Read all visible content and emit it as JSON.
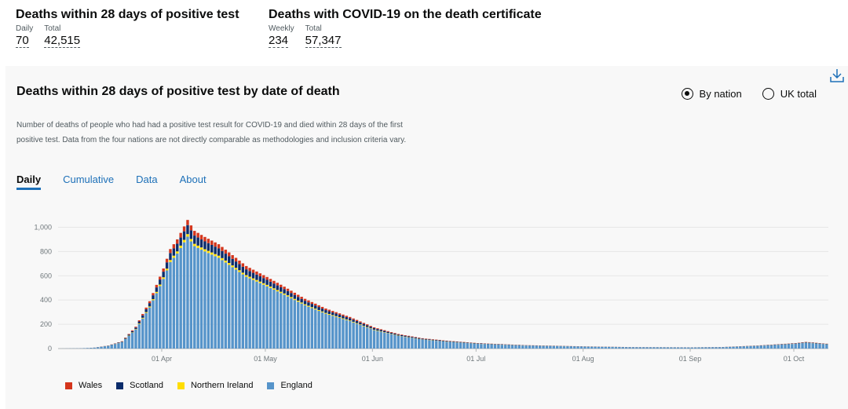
{
  "headline_1": {
    "title": "Deaths within 28 days of positive test",
    "daily_label": "Daily",
    "daily_value": "70",
    "total_label": "Total",
    "total_value": "42,515"
  },
  "headline_2": {
    "title": "Deaths with COVID-19 on the death certificate",
    "weekly_label": "Weekly",
    "weekly_value": "234",
    "total_label": "Total",
    "total_value": "57,347"
  },
  "card": {
    "title": "Deaths within 28 days of positive test by date of death",
    "description": "Number of deaths of people who had had a positive test result for COVID-19 and died within 28 days of the first positive test. Data from the four nations are not directly comparable as methodologies and inclusion criteria vary.",
    "radio_by_nation": "By nation",
    "radio_uk_total": "UK total",
    "tabs": [
      "Daily",
      "Cumulative",
      "Data",
      "About"
    ],
    "download_icon": "download-icon"
  },
  "colors": {
    "Wales": "#d4351c",
    "Scotland": "#0b2c6b",
    "Northern Ireland": "#ffdd00",
    "England": "#5694ca"
  },
  "chart_data": {
    "type": "bar",
    "stacked": true,
    "x_start": "2020-03-02",
    "x_end": "2020-10-10",
    "xticks": [
      {
        "date": "2020-04-01",
        "label": "01 Apr"
      },
      {
        "date": "2020-05-01",
        "label": "01 May"
      },
      {
        "date": "2020-06-01",
        "label": "01 Jun"
      },
      {
        "date": "2020-07-01",
        "label": "01 Jul"
      },
      {
        "date": "2020-08-01",
        "label": "01 Aug"
      },
      {
        "date": "2020-09-01",
        "label": "01 Sep"
      },
      {
        "date": "2020-10-01",
        "label": "01 Oct"
      }
    ],
    "yticks": [
      0,
      200,
      400,
      600,
      800,
      1000
    ],
    "ytick_labels": [
      "0",
      "200",
      "400",
      "600",
      "800",
      "1,000"
    ],
    "ylim": [
      0,
      1100
    ],
    "grid": true,
    "legend_position": "bottom-left",
    "series_order": [
      "England",
      "Northern Ireland",
      "Scotland",
      "Wales"
    ],
    "legend": [
      "Wales",
      "Scotland",
      "Northern Ireland",
      "England"
    ],
    "total_keypoints": [
      [
        "2020-03-02",
        0
      ],
      [
        "2020-03-08",
        2
      ],
      [
        "2020-03-12",
        8
      ],
      [
        "2020-03-16",
        25
      ],
      [
        "2020-03-20",
        60
      ],
      [
        "2020-03-24",
        180
      ],
      [
        "2020-03-28",
        390
      ],
      [
        "2020-04-01",
        660
      ],
      [
        "2020-04-03",
        820
      ],
      [
        "2020-04-05",
        900
      ],
      [
        "2020-04-08",
        1060
      ],
      [
        "2020-04-10",
        970
      ],
      [
        "2020-04-13",
        920
      ],
      [
        "2020-04-17",
        860
      ],
      [
        "2020-04-21",
        770
      ],
      [
        "2020-04-25",
        680
      ],
      [
        "2020-05-01",
        590
      ],
      [
        "2020-05-06",
        510
      ],
      [
        "2020-05-12",
        410
      ],
      [
        "2020-05-18",
        330
      ],
      [
        "2020-05-25",
        260
      ],
      [
        "2020-06-01",
        175
      ],
      [
        "2020-06-08",
        120
      ],
      [
        "2020-06-15",
        85
      ],
      [
        "2020-06-22",
        65
      ],
      [
        "2020-07-01",
        45
      ],
      [
        "2020-07-15",
        28
      ],
      [
        "2020-08-01",
        18
      ],
      [
        "2020-08-15",
        12
      ],
      [
        "2020-09-01",
        10
      ],
      [
        "2020-09-10",
        13
      ],
      [
        "2020-09-20",
        25
      ],
      [
        "2020-10-01",
        45
      ],
      [
        "2020-10-04",
        55
      ],
      [
        "2020-10-10",
        40
      ]
    ],
    "share_england": 0.87,
    "share_northern_ireland": 0.02,
    "share_scotland": 0.07,
    "share_wales": 0.04
  }
}
